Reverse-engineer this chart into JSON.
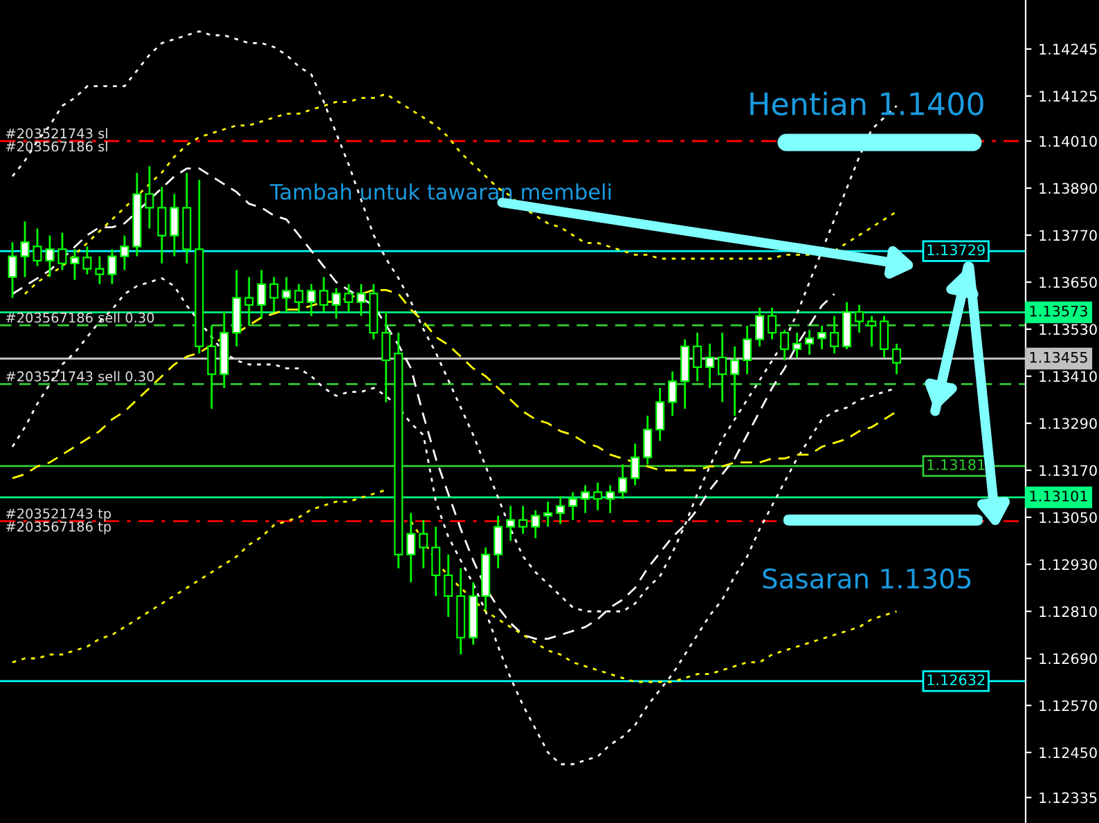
{
  "chart_data": {
    "type": "candlestick",
    "categories": [
      null,
      null,
      null,
      null,
      null,
      null,
      null,
      null,
      null,
      null,
      null,
      null,
      null,
      null,
      null,
      null,
      null,
      null,
      null,
      null,
      null,
      null,
      null,
      null,
      null,
      null,
      null,
      null,
      null,
      null,
      null,
      null,
      null,
      null,
      null,
      null,
      null,
      null,
      null,
      null,
      null,
      null,
      null,
      null,
      null,
      null,
      null,
      null,
      null,
      null,
      null,
      null,
      null,
      null,
      null,
      null,
      null,
      null,
      null,
      null,
      null,
      null,
      null,
      null,
      null,
      null,
      null,
      null,
      null,
      null,
      null,
      null
    ],
    "color": "#00ff00",
    "ohlc": [
      [
        1.13663,
        1.13752,
        1.1361,
        1.13716
      ],
      [
        1.13716,
        1.13805,
        1.13663,
        1.13752
      ],
      [
        1.13741,
        1.13787,
        1.13691,
        1.13705
      ],
      [
        1.13705,
        1.13769,
        1.13663,
        1.13734
      ],
      [
        1.13734,
        1.13776,
        1.13681,
        1.13698
      ],
      [
        1.13698,
        1.13734,
        1.13656,
        1.13713
      ],
      [
        1.13713,
        1.13741,
        1.1367,
        1.13684
      ],
      [
        1.13684,
        1.13716,
        1.13645,
        1.1367
      ],
      [
        1.1367,
        1.13734,
        1.13645,
        1.13716
      ],
      [
        1.13716,
        1.13769,
        1.13681,
        1.13741
      ],
      [
        1.13741,
        1.13929,
        1.13716,
        1.13875
      ],
      [
        1.13875,
        1.13946,
        1.13787,
        1.1384
      ],
      [
        1.1384,
        1.13893,
        1.13698,
        1.13769
      ],
      [
        1.13769,
        1.13875,
        1.13716,
        1.1384
      ],
      [
        1.1384,
        1.13929,
        1.13698,
        1.13734
      ],
      [
        1.13734,
        1.13911,
        1.13468,
        1.13486
      ],
      [
        1.13486,
        1.13539,
        1.13327,
        1.13415
      ],
      [
        1.13415,
        1.13574,
        1.1338,
        1.13521
      ],
      [
        1.13521,
        1.13681,
        1.13486,
        1.1361
      ],
      [
        1.1361,
        1.13663,
        1.13539,
        1.13592
      ],
      [
        1.13592,
        1.13681,
        1.13557,
        1.13645
      ],
      [
        1.13645,
        1.13663,
        1.13574,
        1.1361
      ],
      [
        1.1361,
        1.13663,
        1.13574,
        1.13628
      ],
      [
        1.13628,
        1.13645,
        1.13574,
        1.13599
      ],
      [
        1.13599,
        1.13645,
        1.13564,
        1.13628
      ],
      [
        1.13628,
        1.13663,
        1.13574,
        1.13592
      ],
      [
        1.13592,
        1.13635,
        1.13557,
        1.13621
      ],
      [
        1.13621,
        1.13645,
        1.13574,
        1.13599
      ],
      [
        1.13599,
        1.13645,
        1.13564,
        1.13621
      ],
      [
        1.13621,
        1.13645,
        1.13504,
        1.13521
      ],
      [
        1.13521,
        1.13574,
        1.13344,
        1.13451
      ],
      [
        1.13468,
        1.13521,
        1.1292,
        1.12955
      ],
      [
        1.12955,
        1.13061,
        1.12884,
        1.13008
      ],
      [
        1.13008,
        1.13043,
        1.1292,
        1.12973
      ],
      [
        1.12973,
        1.13026,
        1.12849,
        1.12902
      ],
      [
        1.12902,
        1.12955,
        1.12796,
        1.12849
      ],
      [
        1.12849,
        1.1292,
        1.127,
        1.12743
      ],
      [
        1.12743,
        1.12884,
        1.12725,
        1.12849
      ],
      [
        1.12849,
        1.12973,
        1.12813,
        1.12955
      ],
      [
        1.12955,
        1.13054,
        1.1292,
        1.13026
      ],
      [
        1.13026,
        1.13079,
        1.1299,
        1.13043
      ],
      [
        1.13043,
        1.13079,
        1.13008,
        1.13026
      ],
      [
        1.13026,
        1.13068,
        1.12997,
        1.13054
      ],
      [
        1.13054,
        1.1309,
        1.13026,
        1.13061
      ],
      [
        1.13061,
        1.13104,
        1.13033,
        1.13079
      ],
      [
        1.13079,
        1.13114,
        1.13043,
        1.13097
      ],
      [
        1.13097,
        1.13132,
        1.13061,
        1.13114
      ],
      [
        1.13114,
        1.13139,
        1.13068,
        1.13097
      ],
      [
        1.13097,
        1.13132,
        1.13061,
        1.13114
      ],
      [
        1.13114,
        1.13185,
        1.13097,
        1.1315
      ],
      [
        1.1315,
        1.13238,
        1.13132,
        1.13203
      ],
      [
        1.13203,
        1.13309,
        1.13185,
        1.13274
      ],
      [
        1.13274,
        1.1338,
        1.13245,
        1.13344
      ],
      [
        1.13344,
        1.13422,
        1.13309,
        1.13397
      ],
      [
        1.13397,
        1.13504,
        1.13327,
        1.13486
      ],
      [
        1.13486,
        1.13521,
        1.13397,
        1.13433
      ],
      [
        1.13433,
        1.13493,
        1.1338,
        1.13458
      ],
      [
        1.13458,
        1.13521,
        1.13344,
        1.13415
      ],
      [
        1.13415,
        1.13486,
        1.13309,
        1.13451
      ],
      [
        1.13451,
        1.13539,
        1.13415,
        1.13504
      ],
      [
        1.13504,
        1.13585,
        1.13486,
        1.13564
      ],
      [
        1.13564,
        1.13585,
        1.13504,
        1.13521
      ],
      [
        1.13521,
        1.13528,
        1.13451,
        1.13479
      ],
      [
        1.13479,
        1.13521,
        1.13458,
        1.13493
      ],
      [
        1.13493,
        1.13528,
        1.13465,
        1.13507
      ],
      [
        1.13507,
        1.13539,
        1.13479,
        1.13521
      ],
      [
        1.13521,
        1.13564,
        1.13468,
        1.13486
      ],
      [
        1.13486,
        1.13599,
        1.13479,
        1.13574
      ],
      [
        1.13574,
        1.13592,
        1.13521,
        1.1355
      ],
      [
        1.1355,
        1.13564,
        1.13486,
        1.13539
      ],
      [
        1.1355,
        1.13564,
        1.13458,
        1.13479
      ],
      [
        1.13479,
        1.13493,
        1.13415,
        1.13444
      ]
    ],
    "series": [
      {
        "type": "line",
        "color": "#ffffff",
        "line_style": "dotted",
        "values": [
          1.1392,
          1.1396,
          1.1401,
          1.1405,
          1.141,
          1.1412,
          1.1415,
          1.1415,
          1.1415,
          1.1415,
          1.1419,
          1.1423,
          1.1426,
          1.1427,
          1.1428,
          1.1429,
          1.1428,
          1.1428,
          1.1427,
          1.1426,
          1.1426,
          1.1425,
          1.1423,
          1.142,
          1.1418,
          1.1411,
          1.1403,
          1.1395,
          1.1386,
          1.1377,
          1.1371,
          1.1366,
          1.136,
          1.1353,
          1.1347,
          1.134,
          1.1333,
          1.1326,
          1.1318,
          1.131,
          1.1302,
          1.1295,
          1.1291,
          1.1288,
          1.1285,
          1.1282,
          1.1281,
          1.1281,
          1.1281,
          1.1281,
          1.1283,
          1.1287,
          1.129,
          1.1296,
          1.1303,
          1.1311,
          1.1318,
          1.1325,
          1.133,
          1.1335,
          1.134,
          1.1345,
          1.135,
          1.1357,
          1.1365,
          1.1373,
          1.1381,
          1.1389,
          1.1397,
          1.1404,
          1.1407,
          1.141
        ]
      },
      {
        "type": "line",
        "color": "#ffffff",
        "line_style": "dashed",
        "values": [
          1.1362,
          1.1364,
          1.1366,
          1.1368,
          1.1371,
          1.1374,
          1.1377,
          1.1379,
          1.1379,
          1.138,
          1.1383,
          1.1386,
          1.1389,
          1.1392,
          1.1394,
          1.1394,
          1.1392,
          1.139,
          1.1388,
          1.1385,
          1.1384,
          1.1382,
          1.1381,
          1.1377,
          1.1373,
          1.1369,
          1.1365,
          1.1363,
          1.1361,
          1.1359,
          1.1354,
          1.1349,
          1.1343,
          1.1331,
          1.132,
          1.1311,
          1.1302,
          1.1294,
          1.1287,
          1.1282,
          1.1278,
          1.1275,
          1.1274,
          1.1274,
          1.1275,
          1.1276,
          1.1277,
          1.1279,
          1.1282,
          1.1284,
          1.1287,
          1.1292,
          1.1296,
          1.13,
          1.1303,
          1.1307,
          1.1312,
          1.1316,
          1.132,
          1.1326,
          1.1332,
          1.1338,
          1.1343,
          1.1349,
          1.1354,
          1.1359,
          1.1362,
          null,
          null,
          null,
          null,
          null
        ]
      },
      {
        "type": "line",
        "color": "#ffffff",
        "line_style": "dotted",
        "values": [
          1.1323,
          1.1328,
          1.1334,
          1.1339,
          1.1344,
          1.1347,
          1.1351,
          1.1355,
          1.1358,
          1.1362,
          1.1364,
          1.1365,
          1.1366,
          1.1364,
          1.1359,
          1.1355,
          1.1351,
          1.1347,
          1.1345,
          1.1344,
          1.1344,
          1.1344,
          1.1343,
          1.1343,
          1.1341,
          1.1338,
          1.1336,
          1.1337,
          1.1337,
          1.1338,
          1.1336,
          1.1333,
          1.1329,
          1.1326,
          1.1309,
          1.13,
          1.1294,
          1.1288,
          1.1281,
          1.1272,
          1.1264,
          1.1257,
          1.1251,
          1.1245,
          1.1242,
          1.1242,
          1.1243,
          1.1244,
          1.1247,
          1.1249,
          1.1252,
          1.1257,
          1.1261,
          1.1265,
          1.127,
          1.1275,
          1.128,
          1.1284,
          1.129,
          1.1295,
          1.1302,
          1.1308,
          1.1314,
          1.132,
          1.1325,
          1.133,
          1.1332,
          1.1333,
          1.1335,
          1.1336,
          1.1337,
          1.1338
        ]
      },
      {
        "type": "line",
        "color": "#ffff00",
        "line_style": "dotted",
        "values": [
          null,
          1.1362,
          1.1365,
          1.1367,
          1.1369,
          1.1372,
          1.1375,
          1.1378,
          1.1381,
          1.1384,
          1.1387,
          1.139,
          1.1393,
          1.1397,
          1.14,
          1.1402,
          1.1403,
          1.1404,
          1.1405,
          1.1405,
          1.1406,
          1.1407,
          1.1408,
          1.1408,
          1.1409,
          1.141,
          1.1411,
          1.1411,
          1.1412,
          1.1412,
          1.1413,
          1.1411,
          1.1409,
          1.1407,
          1.1405,
          1.1402,
          1.1398,
          1.1395,
          1.1392,
          1.1389,
          1.1387,
          1.1384,
          1.1382,
          1.138,
          1.1379,
          1.1377,
          1.1375,
          1.1375,
          1.1374,
          1.1373,
          1.1372,
          1.1372,
          1.1371,
          1.1371,
          1.1371,
          1.1371,
          1.1371,
          1.1371,
          1.1371,
          1.1371,
          1.1371,
          1.1371,
          1.1372,
          1.1372,
          1.1372,
          null,
          1.1373,
          1.1375,
          1.1377,
          1.1379,
          1.1381,
          1.1383
        ]
      },
      {
        "type": "line",
        "color": "#ffff00",
        "line_style": "dashed",
        "values": [
          1.1315,
          1.1316,
          1.1318,
          1.1319,
          1.1321,
          1.1323,
          1.1325,
          1.1327,
          1.133,
          1.1332,
          1.1335,
          1.1338,
          1.1341,
          1.1344,
          1.1346,
          1.1347,
          1.1349,
          1.1351,
          1.1352,
          1.1354,
          1.1356,
          1.1357,
          1.1358,
          1.1358,
          1.1359,
          1.136,
          1.136,
          1.1361,
          1.1362,
          1.1363,
          1.1363,
          1.1362,
          1.1358,
          1.1355,
          1.1351,
          1.1349,
          1.1346,
          1.1343,
          1.1341,
          1.1338,
          1.1335,
          1.1332,
          1.133,
          1.1329,
          1.1327,
          1.1326,
          1.1324,
          1.1323,
          1.1321,
          1.132,
          1.1319,
          1.1318,
          1.1317,
          1.1317,
          1.1317,
          1.1317,
          1.1318,
          1.1318,
          1.1319,
          1.1319,
          1.1319,
          1.132,
          1.132,
          1.1321,
          1.1321,
          1.1323,
          1.1324,
          1.1325,
          1.1327,
          1.1328,
          1.133,
          1.1332
        ]
      },
      {
        "type": "line",
        "color": "#ffff00",
        "line_style": "dotted",
        "values": [
          1.1268,
          1.1269,
          1.1269,
          1.127,
          1.127,
          1.1271,
          1.1272,
          1.1274,
          1.1275,
          1.1277,
          1.1279,
          1.1281,
          1.1283,
          1.1285,
          1.1287,
          1.1289,
          1.1291,
          1.1293,
          1.1295,
          1.1298,
          1.13,
          1.1303,
          1.1304,
          1.1305,
          1.1307,
          1.1308,
          1.1309,
          1.1309,
          1.131,
          1.1311,
          1.1312,
          null,
          1.1304,
          1.1299,
          1.1294,
          1.129,
          1.1287,
          1.1284,
          1.1281,
          1.1279,
          1.1277,
          1.1275,
          1.1273,
          1.1271,
          1.127,
          1.1268,
          1.1267,
          1.1266,
          1.1265,
          1.1264,
          1.1263,
          1.1263,
          1.1263,
          1.1263,
          1.1264,
          1.1265,
          1.1265,
          1.1266,
          1.1267,
          1.1268,
          1.1268,
          1.127,
          1.1271,
          1.1272,
          1.1273,
          1.1274,
          1.1275,
          1.1276,
          1.1277,
          1.1279,
          1.128,
          1.1281
        ]
      }
    ],
    "ylim": [
      1.1227,
      1.1437
    ],
    "yticks": [
      1.12335,
      {
        "value": 1.1245,
        "label": "1.12450"
      },
      {
        "value": 1.1257,
        "label": "1.12570"
      },
      {
        "value": 1.1269,
        "label": "1.12690"
      },
      {
        "value": 1.1281,
        "label": "1.12810"
      },
      {
        "value": 1.1293,
        "label": "1.12930"
      },
      {
        "value": 1.1305,
        "label": "1.13050"
      },
      {
        "value": 1.1317,
        "label": "1.13170"
      },
      {
        "value": 1.1329,
        "label": "1.13290"
      },
      {
        "value": 1.1341,
        "label": "1.13410"
      },
      {
        "value": 1.1353,
        "label": "1.13530"
      },
      {
        "value": 1.1365,
        "label": "1.13650"
      },
      {
        "value": 1.1377,
        "label": "1.13770"
      },
      {
        "value": 1.1389,
        "label": "1.13890"
      },
      {
        "value": 1.1401,
        "label": "1.14010"
      },
      1.14125,
      1.14245
    ],
    "tick_labels": "y",
    "grid": false,
    "ref_lines": [
      {
        "axis": "y",
        "value": 1.1401,
        "label": "#203521743 sl",
        "color": "#ff0000",
        "line_style": "dashdot"
      },
      {
        "axis": "y",
        "value": 1.13729,
        "label": "1.13729",
        "color": "#00ffff",
        "line_style": "solid"
      },
      {
        "axis": "y",
        "value": 1.13573,
        "label": "1.13573",
        "color": "#00ff80",
        "line_style": "solid"
      },
      {
        "axis": "y",
        "value": 1.1354,
        "label": "#203567186 sell 0.30",
        "color": "#32cd32",
        "line_style": "dashed"
      },
      {
        "axis": "y",
        "value": 1.13455,
        "label": "1.13455",
        "color": "#c0c0c0",
        "line_style": "solid"
      },
      {
        "axis": "y",
        "value": 1.1339,
        "label": "#203521743 sell 0.30",
        "color": "#32cd32",
        "line_style": "dashed"
      },
      {
        "axis": "y",
        "value": 1.13181,
        "label": "1.13181",
        "color": "#32cd32",
        "line_style": "solid"
      },
      {
        "axis": "y",
        "value": 1.13101,
        "label": "1.13101",
        "color": "#00ff80",
        "line_style": "solid"
      },
      {
        "axis": "y",
        "value": 1.1304,
        "label": "#203521743 tp",
        "color": "#ff0000",
        "line_style": "dashdot"
      },
      {
        "axis": "y",
        "value": 1.12632,
        "label": "1.12632",
        "color": "#00ffff",
        "line_style": "solid"
      }
    ],
    "annotations": [
      "Hentian 1.1400",
      "Tambah untuk tawaran membeli",
      "Sasaran 1.1305",
      "#203567186 sl",
      "#203567186 tp"
    ]
  }
}
